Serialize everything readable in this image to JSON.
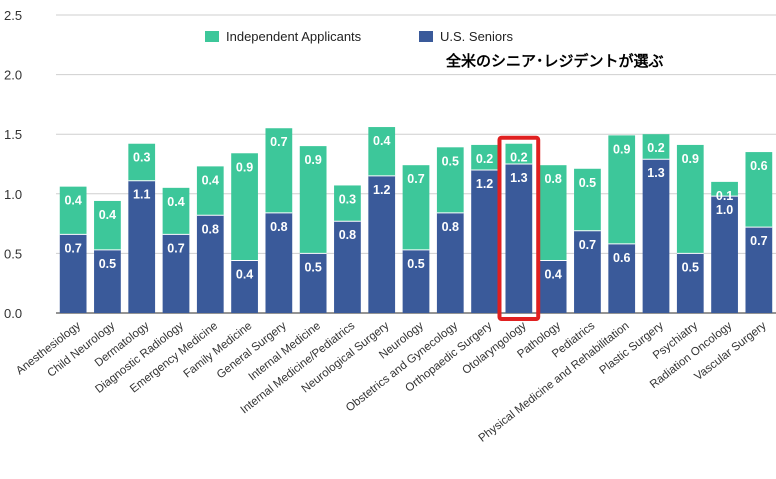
{
  "chart_data": {
    "type": "bar",
    "stacked": true,
    "ylim": [
      0,
      2.5
    ],
    "yticks": [
      "0.0",
      "0.5",
      "1.0",
      "1.5",
      "2.0",
      "2.5"
    ],
    "grid": true,
    "legend_position": "top-center",
    "categories": [
      "Anesthesiology",
      "Child Neurology",
      "Dermatology",
      "Diagnostic Radiology",
      "Emergency Medicine",
      "Family Medicine",
      "General Surgery",
      "Internal Medicine",
      "Internal Medicine/Pediatrics",
      "Neurological Surgery",
      "Neurology",
      "Obstetrics and Gynecology",
      "Orthopaedic Surgery",
      "Otolaryngology",
      "Pathology",
      "Pediatrics",
      "Physical Medicine and Rehabilitation",
      "Plastic Surgery",
      "Psychiatry",
      "Radiation Oncology",
      "Vascular Surgery"
    ],
    "series": [
      {
        "name": "U.S. Seniors",
        "color": "#3a5a9a",
        "values": [
          0.66,
          0.53,
          1.11,
          0.66,
          0.82,
          0.44,
          0.84,
          0.5,
          0.77,
          1.15,
          0.53,
          0.84,
          1.2,
          1.25,
          0.44,
          0.69,
          0.58,
          1.29,
          0.5,
          0.98,
          0.72
        ],
        "labels": [
          "0.7",
          "0.5",
          "1.1",
          "0.7",
          "0.8",
          "0.4",
          "0.8",
          "0.5",
          "0.8",
          "1.2",
          "0.5",
          "0.8",
          "1.2",
          "1.3",
          "0.4",
          "0.7",
          "0.6",
          "1.3",
          "0.5",
          "1.0",
          "0.7"
        ]
      },
      {
        "name": "Independent Applicants",
        "color": "#3dc79a",
        "values": [
          0.4,
          0.41,
          0.31,
          0.39,
          0.41,
          0.9,
          0.71,
          0.9,
          0.3,
          0.41,
          0.71,
          0.55,
          0.21,
          0.17,
          0.8,
          0.52,
          0.91,
          0.21,
          0.91,
          0.12,
          0.63
        ],
        "labels": [
          "0.4",
          "0.4",
          "0.3",
          "0.4",
          "0.4",
          "0.9",
          "0.7",
          "0.9",
          "0.3",
          "0.4",
          "0.7",
          "0.5",
          "0.2",
          "0.2",
          "0.8",
          "0.5",
          "0.9",
          "0.2",
          "0.9",
          "0.1",
          "0.6"
        ]
      }
    ],
    "legend": [
      "Independent Applicants",
      "U.S. Seniors"
    ],
    "annotation": "全米のシニア･レジデントが選ぶ",
    "highlight_category": "Otolaryngology",
    "highlight_color": "#e02020"
  }
}
